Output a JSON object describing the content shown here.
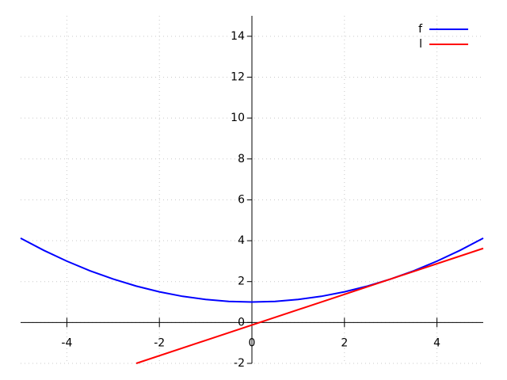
{
  "chart_data": {
    "type": "line",
    "series": [
      {
        "name": "f",
        "color": "#0000ff",
        "x": [
          -5,
          -4.5,
          -4,
          -3.5,
          -3,
          -2.5,
          -2,
          -1.5,
          -1,
          -0.5,
          0,
          0.5,
          1,
          1.5,
          2,
          2.5,
          3,
          3.5,
          4,
          4.5,
          5
        ],
        "values": [
          4.125,
          3.53,
          3,
          2.53,
          2.125,
          1.78,
          1.5,
          1.28,
          1.125,
          1.03,
          1,
          1.03,
          1.125,
          1.28,
          1.5,
          1.78,
          2.125,
          2.53,
          3,
          3.53,
          4.125
        ]
      },
      {
        "name": "l",
        "color": "#ff0000",
        "x": [
          -2.5,
          5
        ],
        "values": [
          -2,
          3.625
        ]
      }
    ],
    "xlim": [
      -5,
      5
    ],
    "ylim": [
      -2,
      15
    ],
    "xticks": [
      -4,
      -2,
      0,
      2,
      4
    ],
    "yticks": [
      -2,
      0,
      2,
      4,
      6,
      8,
      10,
      12,
      14
    ],
    "grid": true,
    "legend": "top-right"
  }
}
